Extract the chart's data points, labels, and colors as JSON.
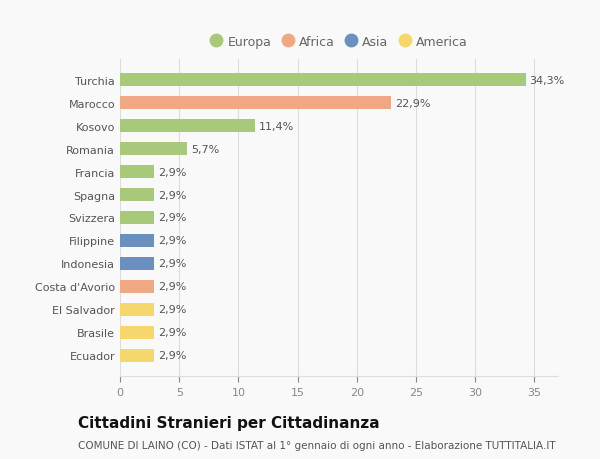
{
  "categories": [
    "Ecuador",
    "Brasile",
    "El Salvador",
    "Costa d'Avorio",
    "Indonesia",
    "Filippine",
    "Svizzera",
    "Spagna",
    "Francia",
    "Romania",
    "Kosovo",
    "Marocco",
    "Turchia"
  ],
  "values": [
    2.9,
    2.9,
    2.9,
    2.9,
    2.9,
    2.9,
    2.9,
    2.9,
    2.9,
    5.7,
    11.4,
    22.9,
    34.3
  ],
  "labels": [
    "2,9%",
    "2,9%",
    "2,9%",
    "2,9%",
    "2,9%",
    "2,9%",
    "2,9%",
    "2,9%",
    "2,9%",
    "5,7%",
    "11,4%",
    "22,9%",
    "34,3%"
  ],
  "colors": [
    "#f5d76e",
    "#f5d76e",
    "#f5d76e",
    "#f0a884",
    "#6b8fbf",
    "#6b8fbf",
    "#a8c87a",
    "#a8c87a",
    "#a8c87a",
    "#a8c87a",
    "#a8c87a",
    "#f0a884",
    "#a8c87a"
  ],
  "legend": [
    {
      "label": "Europa",
      "color": "#a8c87a"
    },
    {
      "label": "Africa",
      "color": "#f0a884"
    },
    {
      "label": "Asia",
      "color": "#6b8fbf"
    },
    {
      "label": "America",
      "color": "#f5d76e"
    }
  ],
  "xlim": [
    0,
    37
  ],
  "xticks": [
    0,
    5,
    10,
    15,
    20,
    25,
    30,
    35
  ],
  "title": "Cittadini Stranieri per Cittadinanza",
  "subtitle": "COMUNE DI LAINO (CO) - Dati ISTAT al 1° gennaio di ogni anno - Elaborazione TUTTITALIA.IT",
  "background_color": "#f9f9f9",
  "grid_color": "#dddddd",
  "bar_height": 0.55,
  "label_fontsize": 8,
  "tick_fontsize": 8,
  "title_fontsize": 11,
  "subtitle_fontsize": 7.5
}
